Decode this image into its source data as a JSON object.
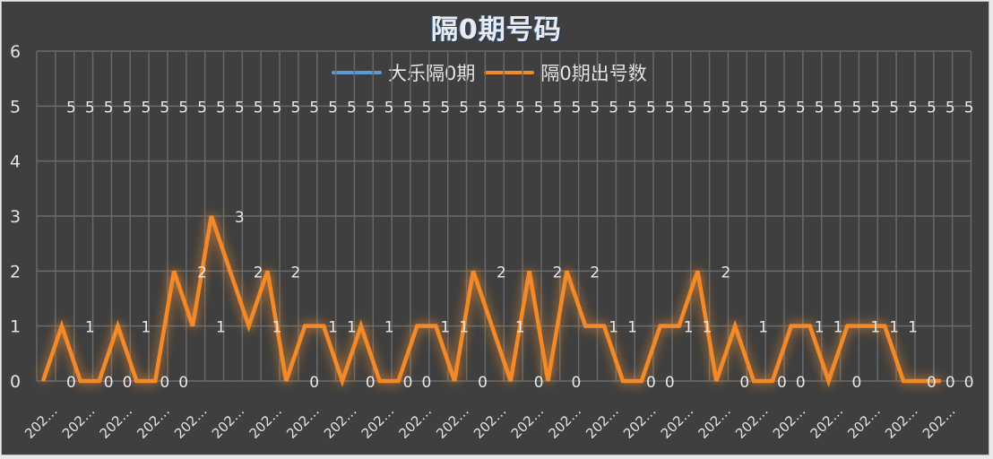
{
  "chart_data": {
    "type": "line",
    "title": "隔0期号码",
    "xlabel": "",
    "ylabel": "",
    "ylim": [
      0,
      6
    ],
    "yticks": [
      0,
      1,
      2,
      3,
      4,
      5,
      6
    ],
    "grid": true,
    "legend_position": "top",
    "x_tick_label": "202…",
    "x_tick_label_every": 2,
    "n_categories": 49,
    "series": [
      {
        "name": "大乐隔0期",
        "color": "#5b9bd5",
        "values": [
          5,
          5,
          5,
          5,
          5,
          5,
          5,
          5,
          5,
          5,
          5,
          5,
          5,
          5,
          5,
          5,
          5,
          5,
          5,
          5,
          5,
          5,
          5,
          5,
          5,
          5,
          5,
          5,
          5,
          5,
          5,
          5,
          5,
          5,
          5,
          5,
          5,
          5,
          5,
          5,
          5,
          5,
          5,
          5,
          5,
          5,
          5,
          5,
          5
        ]
      },
      {
        "name": "隔0期出号数",
        "color": "#f28a2a",
        "values": [
          0,
          1,
          0,
          0,
          1,
          0,
          0,
          2,
          1,
          3,
          2,
          1,
          2,
          0,
          1,
          1,
          0,
          1,
          0,
          0,
          1,
          1,
          0,
          2,
          1,
          0,
          2,
          0,
          2,
          1,
          1,
          0,
          0,
          1,
          1,
          2,
          0,
          1,
          0,
          0,
          1,
          1,
          0,
          1,
          1,
          1,
          0,
          0,
          0
        ]
      }
    ],
    "data_labels": true
  },
  "colors": {
    "background": "#3f3f3f",
    "grid": "#6a6a6a",
    "text": "#e3e3e3"
  }
}
